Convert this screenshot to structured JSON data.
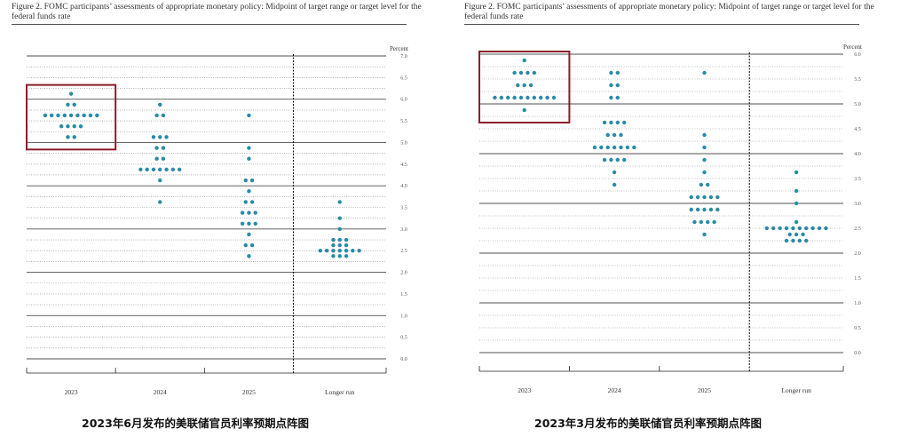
{
  "colors": {
    "dot": "#2a8aa6",
    "highlight_box": "#8b1d2c",
    "grid": "#333333"
  },
  "panels": [
    {
      "id": "june",
      "figure_title": "Figure 2.  FOMC participants’ assessments of appropriate monetary policy:  Midpoint of target range or target level for the federal funds rate",
      "caption": "2023年6月发布的美联储官员利率预期点阵图",
      "chart_data": {
        "type": "scatter",
        "ylabel": "Percent",
        "ylim": [
          0.0,
          7.0
        ],
        "y_ticks": [
          "0.0",
          "0.5",
          "1.0",
          "1.5",
          "2.0",
          "2.5",
          "3.0",
          "3.5",
          "4.0",
          "4.5",
          "5.0",
          "5.5",
          "6.0",
          "6.5",
          "7.0"
        ],
        "categories": [
          "2023",
          "2024",
          "2025",
          "Longer run"
        ],
        "highlight_category": "2023",
        "dots": [
          {
            "category": "2023",
            "groups": [
              [
                6.125,
                1
              ],
              [
                5.875,
                2
              ],
              [
                5.625,
                9
              ],
              [
                5.375,
                4
              ],
              [
                5.125,
                2
              ]
            ]
          },
          {
            "category": "2024",
            "groups": [
              [
                5.875,
                1
              ],
              [
                5.625,
                2
              ],
              [
                5.125,
                3
              ],
              [
                4.875,
                2
              ],
              [
                4.625,
                2
              ],
              [
                4.375,
                7
              ],
              [
                4.125,
                1
              ],
              [
                3.625,
                1
              ]
            ]
          },
          {
            "category": "2025",
            "groups": [
              [
                5.625,
                1
              ],
              [
                4.875,
                1
              ],
              [
                4.625,
                1
              ],
              [
                4.125,
                2
              ],
              [
                3.875,
                1
              ],
              [
                3.625,
                2
              ],
              [
                3.375,
                3
              ],
              [
                3.125,
                3
              ],
              [
                2.875,
                1
              ],
              [
                2.625,
                2
              ],
              [
                2.375,
                1
              ]
            ]
          },
          {
            "category": "Longer run",
            "groups": [
              [
                3.625,
                1
              ],
              [
                3.25,
                1
              ],
              [
                3.0,
                1
              ],
              [
                2.75,
                3
              ],
              [
                2.625,
                3
              ],
              [
                2.5,
                7
              ],
              [
                2.375,
                3
              ]
            ]
          }
        ]
      }
    },
    {
      "id": "march",
      "figure_title": "Figure 2.  FOMC participants’ assessments of appropriate monetary policy:  Midpoint of target range or target level for the federal funds rate",
      "caption": "2023年3月发布的美联储官员利率预期点阵图",
      "chart_data": {
        "type": "scatter",
        "ylabel": "Percent",
        "ylim": [
          0.0,
          6.0
        ],
        "y_ticks": [
          "0.0",
          "0.5",
          "1.0",
          "1.5",
          "2.0",
          "2.5",
          "3.0",
          "3.5",
          "4.0",
          "4.5",
          "5.0",
          "5.5",
          "6.0"
        ],
        "categories": [
          "2023",
          "2024",
          "2025",
          "Longer run"
        ],
        "highlight_category": "2023",
        "dots": [
          {
            "category": "2023",
            "groups": [
              [
                5.875,
                1
              ],
              [
                5.625,
                4
              ],
              [
                5.375,
                3
              ],
              [
                5.125,
                10
              ],
              [
                4.875,
                1
              ]
            ]
          },
          {
            "category": "2024",
            "groups": [
              [
                5.625,
                2
              ],
              [
                5.375,
                2
              ],
              [
                5.125,
                2
              ],
              [
                4.625,
                4
              ],
              [
                4.375,
                3
              ],
              [
                4.125,
                7
              ],
              [
                3.875,
                4
              ],
              [
                3.625,
                1
              ],
              [
                3.375,
                1
              ]
            ]
          },
          {
            "category": "2025",
            "groups": [
              [
                5.625,
                1
              ],
              [
                4.375,
                1
              ],
              [
                4.125,
                1
              ],
              [
                3.875,
                1
              ],
              [
                3.625,
                1
              ],
              [
                3.375,
                2
              ],
              [
                3.125,
                5
              ],
              [
                2.875,
                5
              ],
              [
                2.625,
                4
              ],
              [
                2.375,
                1
              ]
            ]
          },
          {
            "category": "Longer run",
            "groups": [
              [
                3.625,
                1
              ],
              [
                3.25,
                1
              ],
              [
                3.0,
                1
              ],
              [
                2.625,
                1
              ],
              [
                2.5,
                10
              ],
              [
                2.375,
                3
              ],
              [
                2.25,
                4
              ]
            ]
          }
        ]
      }
    }
  ]
}
